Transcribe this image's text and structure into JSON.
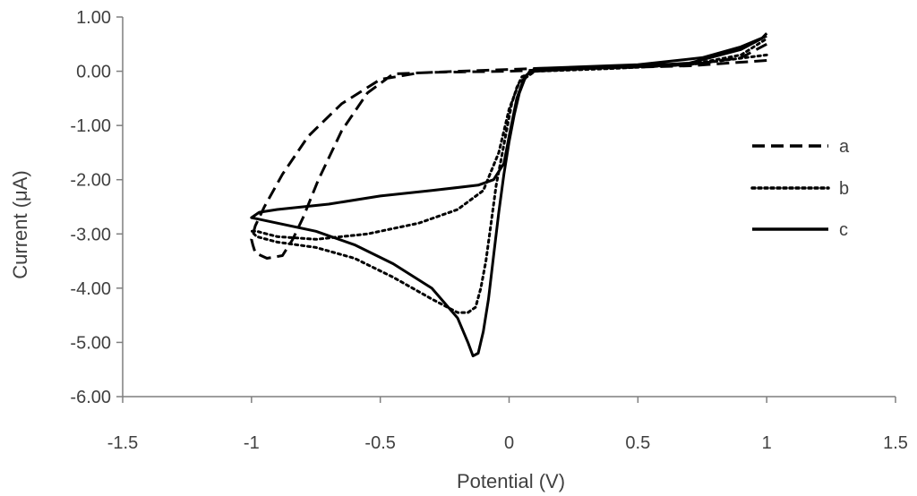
{
  "chart_data": {
    "type": "line",
    "xlabel": "Potential (V)",
    "ylabel": "Current (μA)",
    "xlim": [
      -1.5,
      1.5
    ],
    "ylim": [
      -6.0,
      1.0
    ],
    "x_ticks": [
      "-1.5",
      "-1",
      "-0.5",
      "0",
      "0.5",
      "1",
      "1.5"
    ],
    "y_ticks": [
      "1.00",
      "0.00",
      "-1.00",
      "-2.00",
      "-3.00",
      "-4.00",
      "-5.00",
      "-6.00"
    ],
    "grid": false,
    "legend_position": "right",
    "series": [
      {
        "name": "a",
        "style": "dashed",
        "color": "#000000",
        "points": [
          [
            1.0,
            0.2
          ],
          [
            0.7,
            0.1
          ],
          [
            0.3,
            0.05
          ],
          [
            0.1,
            0.02
          ],
          [
            0.0,
            0.0
          ],
          [
            -0.3,
            -0.02
          ],
          [
            -0.45,
            -0.05
          ],
          [
            -0.55,
            -0.4
          ],
          [
            -0.65,
            -1.1
          ],
          [
            -0.74,
            -2.0
          ],
          [
            -0.8,
            -2.7
          ],
          [
            -0.84,
            -3.1
          ],
          [
            -0.88,
            -3.4
          ],
          [
            -0.94,
            -3.45
          ],
          [
            -0.985,
            -3.35
          ],
          [
            -0.995,
            -3.2
          ],
          [
            -1.0,
            -3.1
          ],
          [
            -0.985,
            -2.85
          ],
          [
            -0.95,
            -2.5
          ],
          [
            -0.88,
            -1.9
          ],
          [
            -0.78,
            -1.2
          ],
          [
            -0.65,
            -0.6
          ],
          [
            -0.5,
            -0.15
          ],
          [
            -0.35,
            -0.03
          ],
          [
            -0.2,
            0.0
          ],
          [
            0.1,
            0.05
          ],
          [
            0.5,
            0.08
          ],
          [
            0.75,
            0.15
          ],
          [
            0.9,
            0.25
          ],
          [
            1.0,
            0.5
          ]
        ]
      },
      {
        "name": "b",
        "style": "dotted",
        "color": "#000000",
        "points": [
          [
            1.0,
            0.3
          ],
          [
            0.7,
            0.12
          ],
          [
            0.3,
            0.05
          ],
          [
            0.1,
            0.0
          ],
          [
            0.05,
            -0.1
          ],
          [
            0.03,
            -0.3
          ],
          [
            0.01,
            -0.6
          ],
          [
            -0.01,
            -1.1
          ],
          [
            -0.03,
            -1.6
          ],
          [
            -0.05,
            -2.1
          ],
          [
            -0.07,
            -2.8
          ],
          [
            -0.09,
            -3.5
          ],
          [
            -0.11,
            -4.0
          ],
          [
            -0.13,
            -4.35
          ],
          [
            -0.16,
            -4.45
          ],
          [
            -0.2,
            -4.45
          ],
          [
            -0.3,
            -4.2
          ],
          [
            -0.45,
            -3.8
          ],
          [
            -0.6,
            -3.45
          ],
          [
            -0.75,
            -3.25
          ],
          [
            -0.9,
            -3.15
          ],
          [
            -0.98,
            -3.05
          ],
          [
            -1.0,
            -2.95
          ],
          [
            -0.98,
            -2.95
          ],
          [
            -0.9,
            -3.05
          ],
          [
            -0.75,
            -3.1
          ],
          [
            -0.55,
            -3.0
          ],
          [
            -0.35,
            -2.8
          ],
          [
            -0.2,
            -2.55
          ],
          [
            -0.1,
            -2.2
          ],
          [
            -0.04,
            -1.5
          ],
          [
            0.0,
            -0.7
          ],
          [
            0.04,
            -0.2
          ],
          [
            0.1,
            0.0
          ],
          [
            0.4,
            0.05
          ],
          [
            0.7,
            0.12
          ],
          [
            0.9,
            0.3
          ],
          [
            1.0,
            0.6
          ]
        ]
      },
      {
        "name": "c",
        "style": "solid",
        "color": "#000000",
        "points": [
          [
            1.0,
            0.7
          ],
          [
            0.98,
            0.6
          ],
          [
            0.9,
            0.4
          ],
          [
            0.7,
            0.15
          ],
          [
            0.4,
            0.07
          ],
          [
            0.15,
            0.05
          ],
          [
            0.08,
            0.0
          ],
          [
            0.06,
            -0.15
          ],
          [
            0.04,
            -0.4
          ],
          [
            0.02,
            -0.8
          ],
          [
            0.0,
            -1.3
          ],
          [
            -0.02,
            -1.9
          ],
          [
            -0.04,
            -2.6
          ],
          [
            -0.06,
            -3.4
          ],
          [
            -0.08,
            -4.2
          ],
          [
            -0.1,
            -4.8
          ],
          [
            -0.12,
            -5.2
          ],
          [
            -0.14,
            -5.25
          ],
          [
            -0.16,
            -5.0
          ],
          [
            -0.2,
            -4.55
          ],
          [
            -0.3,
            -4.0
          ],
          [
            -0.45,
            -3.55
          ],
          [
            -0.6,
            -3.2
          ],
          [
            -0.75,
            -2.95
          ],
          [
            -0.9,
            -2.8
          ],
          [
            -0.98,
            -2.72
          ],
          [
            -1.0,
            -2.7
          ],
          [
            -0.97,
            -2.6
          ],
          [
            -0.9,
            -2.55
          ],
          [
            -0.7,
            -2.45
          ],
          [
            -0.5,
            -2.3
          ],
          [
            -0.3,
            -2.2
          ],
          [
            -0.12,
            -2.1
          ],
          [
            -0.06,
            -2.0
          ],
          [
            -0.02,
            -1.7
          ],
          [
            0.0,
            -1.2
          ],
          [
            0.03,
            -0.5
          ],
          [
            0.06,
            -0.1
          ],
          [
            0.1,
            0.05
          ],
          [
            0.5,
            0.12
          ],
          [
            0.75,
            0.25
          ],
          [
            0.9,
            0.45
          ],
          [
            1.0,
            0.65
          ]
        ]
      }
    ]
  }
}
